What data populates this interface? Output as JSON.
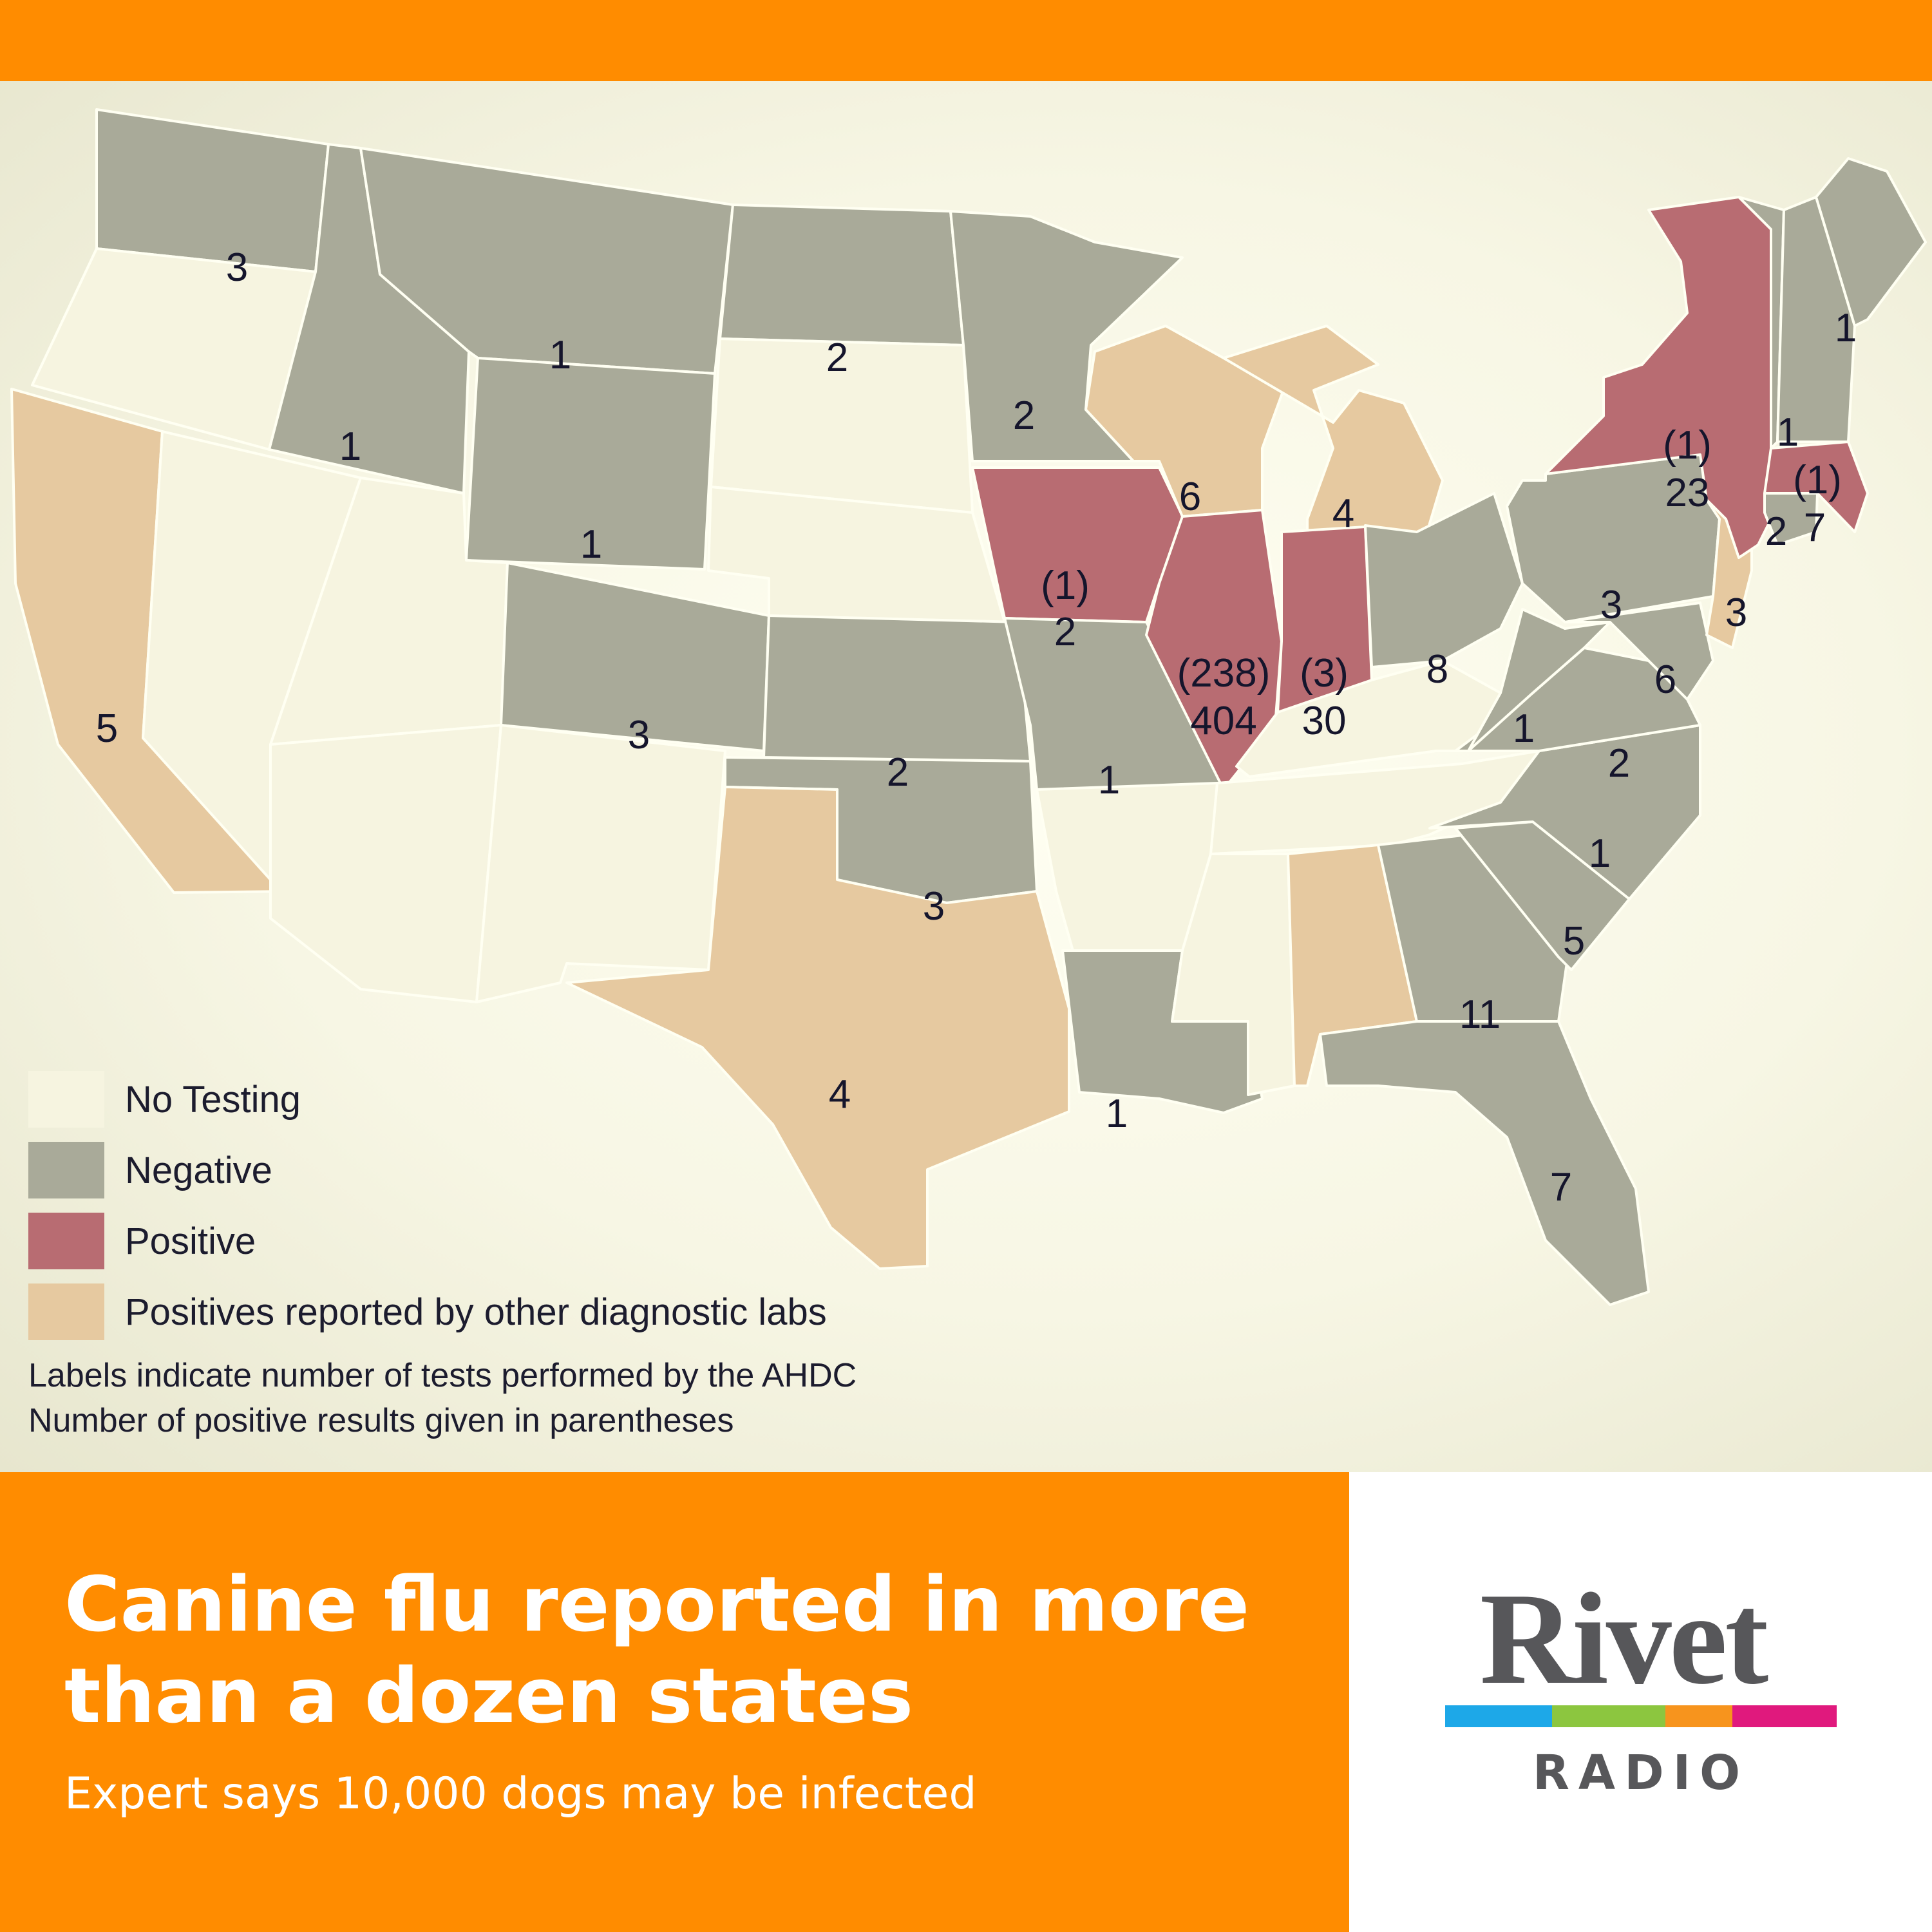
{
  "colors": {
    "brand_orange": "#FF8C00",
    "no_testing": "#F6F4E0",
    "negative": "#A9AA99",
    "positive": "#B86C72",
    "other_labs": "#E6C9A0"
  },
  "legend": {
    "no_testing": "No Testing",
    "negative": "Negative",
    "positive": "Positive",
    "other_labs": "Positives reported by other diagnostic labs"
  },
  "notes": {
    "line1": "Labels indicate number of tests performed by the AHDC",
    "line2": "Number of positive results given in parentheses"
  },
  "states": {
    "WA": {
      "status": "negative",
      "tests": "3"
    },
    "OR": {
      "status": "no_testing"
    },
    "CA": {
      "status": "other_labs",
      "tests": "5"
    },
    "ID": {
      "status": "negative",
      "tests": "1"
    },
    "NV": {
      "status": "no_testing"
    },
    "MT": {
      "status": "negative",
      "tests": "1"
    },
    "WY": {
      "status": "negative",
      "tests": "1"
    },
    "UT": {
      "status": "no_testing"
    },
    "AZ": {
      "status": "no_testing"
    },
    "CO": {
      "status": "negative",
      "tests": "3"
    },
    "NM": {
      "status": "no_testing"
    },
    "ND": {
      "status": "negative",
      "tests": "2"
    },
    "SD": {
      "status": "no_testing"
    },
    "NE": {
      "status": "no_testing"
    },
    "KS": {
      "status": "negative",
      "tests": "2"
    },
    "OK": {
      "status": "negative",
      "tests": "3"
    },
    "TX": {
      "status": "other_labs",
      "tests": "4"
    },
    "MN": {
      "status": "negative",
      "tests": "2"
    },
    "IA": {
      "status": "positive",
      "positives": "(1)",
      "tests": "2"
    },
    "MO": {
      "status": "negative",
      "tests": "1"
    },
    "AR": {
      "status": "no_testing"
    },
    "LA": {
      "status": "negative",
      "tests": "1"
    },
    "WI": {
      "status": "other_labs",
      "tests": "6"
    },
    "MI": {
      "status": "other_labs",
      "tests": "4"
    },
    "IL": {
      "status": "positive",
      "positives": "(238)",
      "tests": "404"
    },
    "IN": {
      "status": "positive",
      "positives": "(3)",
      "tests": "30"
    },
    "OH": {
      "status": "negative",
      "tests": "8"
    },
    "KY": {
      "status": "no_testing"
    },
    "TN": {
      "status": "no_testing"
    },
    "MS": {
      "status": "no_testing"
    },
    "AL": {
      "status": "other_labs"
    },
    "GA": {
      "status": "negative",
      "tests": "11"
    },
    "FL": {
      "status": "negative",
      "tests": "7"
    },
    "SC": {
      "status": "negative",
      "tests": "5"
    },
    "NC": {
      "status": "negative",
      "tests": "1"
    },
    "VA": {
      "status": "negative",
      "tests": "2"
    },
    "WV": {
      "status": "negative",
      "tests": "1"
    },
    "MD": {
      "status": "negative",
      "tests": "6"
    },
    "PA": {
      "status": "negative",
      "tests": "3"
    },
    "NJ": {
      "status": "other_labs",
      "tests": "3"
    },
    "NY": {
      "status": "positive",
      "positives": "(1)",
      "tests": "23"
    },
    "CT": {
      "status": "negative",
      "tests": "2"
    },
    "MA": {
      "status": "positive",
      "positives": "(1)",
      "tests": "7"
    },
    "VT": {
      "status": "negative"
    },
    "NH": {
      "status": "negative",
      "tests": "1"
    },
    "ME": {
      "status": "negative",
      "tests": "1"
    }
  },
  "headline": "Canine flu reported in more than a dozen states",
  "subheadline": "Expert says 10,000 dogs may be infected",
  "logo": {
    "word": "Rivet",
    "sub": "RADIO",
    "bar_colors": [
      "#1DA8E8",
      "#8CC63F",
      "#F7941D",
      "#E0197D"
    ]
  }
}
